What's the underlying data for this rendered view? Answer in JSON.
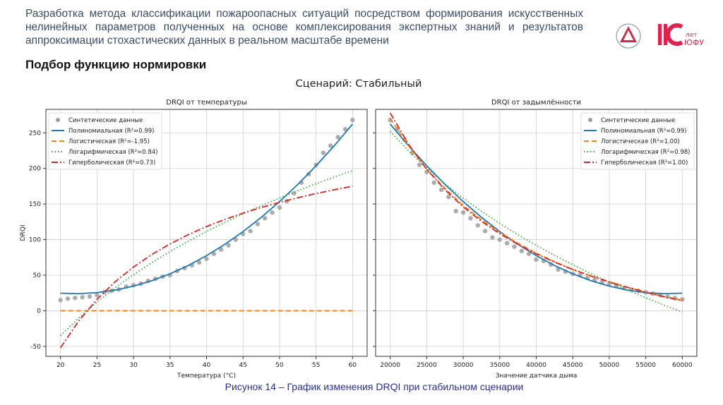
{
  "header": {
    "title": "Разработка метода классификации пожароопасных ситуаций посредством формирования искусственных нелинейных параметров полученных на основе комплексирования экспертных знаний и результатов аппроксимации стохастических данных в реальном масштабе времени",
    "subtitle": "Подбор функцию нормировки",
    "logo_text": "110 лет ЮФУ"
  },
  "figure": {
    "suptitle": "Сценарий: Стабильный",
    "caption": "Рисунок 14 – График изменения DRQI при стабильном сценарии"
  },
  "colors": {
    "scatter": "#9e9e9e",
    "poly": "#1f77b4",
    "logistic": "#ff7f0e",
    "log": "#2ca02c",
    "hyper": "#d62728",
    "brand": "#e0234e"
  },
  "chart_data": [
    {
      "type": "line",
      "title": "DRQI от температуры",
      "xlabel": "Температура (°C)",
      "ylabel": "DRQI",
      "xlim": [
        18,
        62
      ],
      "ylim": [
        -64,
        283
      ],
      "xticks": [
        20,
        25,
        30,
        35,
        40,
        45,
        50,
        55,
        60
      ],
      "yticks": [
        -50,
        0,
        50,
        100,
        150,
        200,
        250
      ],
      "grid": true,
      "legend": "top-left",
      "scatter": {
        "name": "Синтетические данные",
        "x": [
          20,
          21,
          22,
          23,
          24,
          25,
          26,
          27,
          28,
          29,
          30,
          31,
          32,
          33,
          34,
          35,
          36,
          37,
          38,
          39,
          40,
          41,
          42,
          43,
          44,
          45,
          46,
          47,
          48,
          49,
          50,
          51,
          52,
          53,
          54,
          55,
          56,
          57,
          58,
          59,
          60
        ],
        "y": [
          15,
          17,
          18,
          19,
          20,
          22,
          26,
          28,
          30,
          34,
          36,
          38,
          42,
          45,
          48,
          50,
          56,
          60,
          64,
          68,
          73,
          80,
          86,
          92,
          100,
          108,
          112,
          122,
          130,
          138,
          145,
          154,
          165,
          180,
          192,
          205,
          222,
          232,
          244,
          255,
          268
        ]
      },
      "curve_x": [
        20,
        22.5,
        25,
        27.5,
        30,
        32.5,
        35,
        37.5,
        40,
        42.5,
        45,
        47.5,
        50,
        52.5,
        55,
        57.5,
        60
      ],
      "series": [
        {
          "key": "poly",
          "name": "Полиномиальная (R²=0.99)",
          "y": [
            24.7,
            24.0,
            25.5,
            29.0,
            34.6,
            42.2,
            51.9,
            63.6,
            77.5,
            93.3,
            111.3,
            131.3,
            153.4,
            177.5,
            203.7,
            231.9,
            262.3
          ]
        },
        {
          "key": "logistic",
          "name": "Логистическая (R²=-1.95)",
          "y": [
            0,
            0,
            0,
            0,
            0,
            0,
            0,
            0,
            0,
            0,
            0,
            0,
            0,
            0,
            0,
            0,
            0
          ]
        },
        {
          "key": "log",
          "name": "Логарифмическая (R²=0.84)",
          "y": [
            -34.9,
            -10.1,
            12.2,
            32.3,
            50.7,
            67.5,
            83.2,
            97.7,
            111.4,
            124.1,
            136.2,
            147.6,
            158.4,
            168.7,
            178.5,
            187.9,
            196.9
          ]
        },
        {
          "key": "hyper",
          "name": "Гиперболическая (R²=0.73)",
          "y": [
            -52,
            -14.2,
            16.1,
            40.9,
            61.5,
            79.0,
            93.9,
            106.9,
            118.3,
            128.3,
            137.2,
            145.1,
            152.3,
            158.8,
            164.7,
            170.1,
            175.0
          ]
        }
      ]
    },
    {
      "type": "line",
      "title": "DRQI от задымлённости",
      "xlabel": "Значение датчика дыма",
      "ylabel": "",
      "xlim": [
        18000,
        62000
      ],
      "ylim": [
        -64,
        283
      ],
      "xticks": [
        20000,
        25000,
        30000,
        35000,
        40000,
        45000,
        50000,
        55000,
        60000
      ],
      "yticks": [
        -50,
        0,
        50,
        100,
        150,
        200,
        250
      ],
      "grid": true,
      "legend": "top-right",
      "scatter": {
        "name": "Синтетические данные",
        "x": [
          20000,
          21000,
          22000,
          23000,
          24000,
          25000,
          26000,
          27000,
          28000,
          29000,
          30000,
          31000,
          32000,
          33000,
          34000,
          35000,
          36000,
          37000,
          38000,
          39000,
          40000,
          41000,
          42000,
          43000,
          44000,
          45000,
          46000,
          47000,
          48000,
          49000,
          50000,
          51000,
          52000,
          53000,
          54000,
          55000,
          56000,
          57000,
          58000,
          59000,
          60000
        ],
        "y": [
          268,
          255,
          240,
          222,
          205,
          195,
          180,
          170,
          160,
          140,
          138,
          130,
          120,
          112,
          103,
          100,
          95,
          90,
          84,
          80,
          72,
          70,
          65,
          58,
          55,
          52,
          50,
          46,
          43,
          40,
          38,
          35,
          32,
          30,
          28,
          26,
          24,
          22,
          20,
          18,
          16
        ]
      },
      "curve_x": [
        20000,
        22500,
        25000,
        27500,
        30000,
        32500,
        35000,
        37500,
        40000,
        42500,
        45000,
        47500,
        50000,
        52500,
        55000,
        57500,
        60000
      ],
      "series": [
        {
          "key": "poly",
          "name": "Полиномиальная (R²=0.99)",
          "y": [
            262.3,
            231.9,
            203.7,
            177.5,
            153.4,
            131.3,
            111.3,
            93.3,
            77.5,
            63.6,
            51.9,
            42.2,
            34.6,
            29.0,
            25.5,
            24.0,
            24.7
          ]
        },
        {
          "key": "logistic",
          "name": "Логистическая (R²=1.00)",
          "y": [
            270,
            232,
            199,
            172,
            148,
            128,
            110,
            95,
            81,
            69,
            58,
            49,
            41,
            33,
            26,
            20,
            15
          ]
        },
        {
          "key": "log",
          "name": "Логарифмическая (R²=0.98)",
          "y": [
            252,
            224.8,
            200.4,
            178.4,
            158.3,
            139.8,
            122.7,
            106.8,
            91.9,
            77.9,
            64.7,
            52.2,
            40.3,
            29.1,
            18.3,
            8,
            -1.8
          ]
        },
        {
          "key": "hyper",
          "name": "Гиперболическая (R²=1.00)",
          "y": [
            278,
            234,
            198.8,
            170,
            146,
            125.7,
            108.3,
            93.2,
            80,
            68.4,
            58,
            48.7,
            40.4,
            32.9,
            26,
            19.7,
            14
          ]
        }
      ]
    }
  ]
}
